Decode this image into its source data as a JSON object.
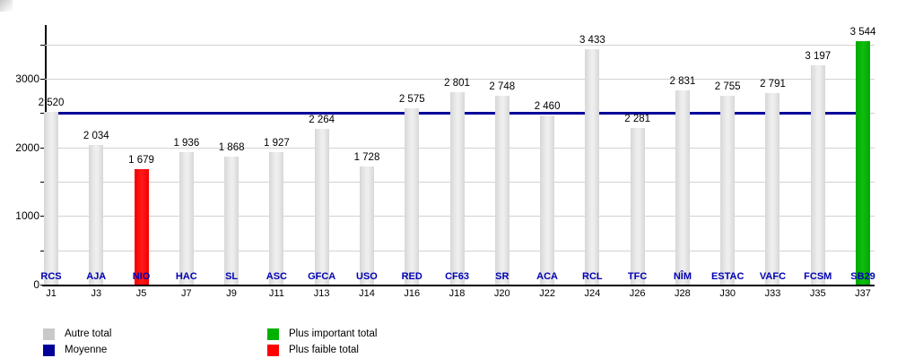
{
  "legend": {
    "autre": {
      "label": "Autre total",
      "color": "#c9c9c9"
    },
    "moyenne": {
      "label": "Moyenne",
      "color": "#000099"
    },
    "max": {
      "label": "Plus important total",
      "color": "#00b200"
    },
    "min": {
      "label": "Plus faible total",
      "color": "#ff0000"
    }
  },
  "chart_data": {
    "type": "bar",
    "title": "",
    "xlabel": "",
    "ylabel": "",
    "ylim": [
      0,
      3760
    ],
    "ytick_labels": [
      "0",
      "1000",
      "2000",
      "3000"
    ],
    "ytick_values": [
      0,
      1000,
      2000,
      3000
    ],
    "gridline_values": [
      500,
      1000,
      1500,
      2000,
      2500,
      3000,
      3500
    ],
    "grid": "on",
    "legend_position": "bottom",
    "average": {
      "name": "Moyenne",
      "value": 2493,
      "color": "#000099"
    },
    "bars": [
      {
        "matchday": "J1",
        "team": "RCS",
        "value": 2520,
        "label": "2 520",
        "kind": "autre"
      },
      {
        "matchday": "J3",
        "team": "AJA",
        "value": 2034,
        "label": "2 034",
        "kind": "autre"
      },
      {
        "matchday": "J5",
        "team": "NIO",
        "value": 1679,
        "label": "1 679",
        "kind": "min"
      },
      {
        "matchday": "J7",
        "team": "HAC",
        "value": 1936,
        "label": "1 936",
        "kind": "autre"
      },
      {
        "matchday": "J9",
        "team": "SL",
        "value": 1868,
        "label": "1 868",
        "kind": "autre"
      },
      {
        "matchday": "J11",
        "team": "ASC",
        "value": 1927,
        "label": "1 927",
        "kind": "autre"
      },
      {
        "matchday": "J13",
        "team": "GFCA",
        "value": 2264,
        "label": "2 264",
        "kind": "autre"
      },
      {
        "matchday": "J14",
        "team": "USO",
        "value": 1728,
        "label": "1 728",
        "kind": "autre"
      },
      {
        "matchday": "J16",
        "team": "RED",
        "value": 2575,
        "label": "2 575",
        "kind": "autre"
      },
      {
        "matchday": "J18",
        "team": "CF63",
        "value": 2801,
        "label": "2 801",
        "kind": "autre"
      },
      {
        "matchday": "J20",
        "team": "SR",
        "value": 2748,
        "label": "2 748",
        "kind": "autre"
      },
      {
        "matchday": "J22",
        "team": "ACA",
        "value": 2460,
        "label": "2 460",
        "kind": "autre"
      },
      {
        "matchday": "J24",
        "team": "RCL",
        "value": 3433,
        "label": "3 433",
        "kind": "autre"
      },
      {
        "matchday": "J26",
        "team": "TFC",
        "value": 2281,
        "label": "2 281",
        "kind": "autre"
      },
      {
        "matchday": "J28",
        "team": "NÎM",
        "value": 2831,
        "label": "2 831",
        "kind": "autre"
      },
      {
        "matchday": "J30",
        "team": "ESTAC",
        "value": 2755,
        "label": "2 755",
        "kind": "autre"
      },
      {
        "matchday": "J33",
        "team": "VAFC",
        "value": 2791,
        "label": "2 791",
        "kind": "autre"
      },
      {
        "matchday": "J35",
        "team": "FCSM",
        "value": 3197,
        "label": "3 197",
        "kind": "autre"
      },
      {
        "matchday": "J37",
        "team": "SB29",
        "value": 3544,
        "label": "3 544",
        "kind": "max"
      }
    ],
    "colors": {
      "bar_autre": "#dddddd",
      "bar_min": "#ff0000",
      "bar_max": "#00b200",
      "average_line": "#000099",
      "team_label": "#0000b4"
    }
  }
}
